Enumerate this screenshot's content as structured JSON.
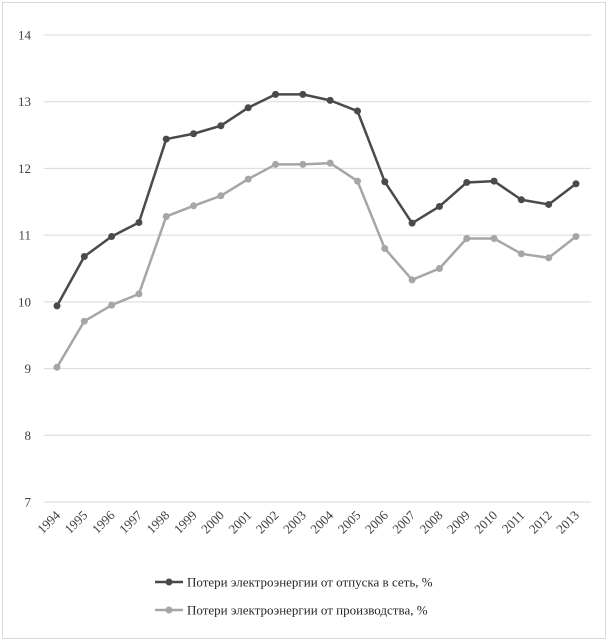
{
  "chart_data": {
    "type": "line",
    "title": "",
    "xlabel": "",
    "ylabel": "",
    "ylim": [
      7,
      14
    ],
    "yticks": [
      7,
      8,
      9,
      10,
      11,
      12,
      13,
      14
    ],
    "grid": true,
    "legend_position": "bottom",
    "categories": [
      "1994",
      "1995",
      "1996",
      "1997",
      "1998",
      "1999",
      "2000",
      "2001",
      "2002",
      "2003",
      "2004",
      "2005",
      "2006",
      "2007",
      "2008",
      "2009",
      "2010",
      "2011",
      "2012",
      "2013"
    ],
    "series": [
      {
        "name": "Потери электроэнергии от отпуска в сеть, %",
        "color": "#4a4a4a",
        "values": [
          9.94,
          10.68,
          10.98,
          11.19,
          12.44,
          12.52,
          12.64,
          12.91,
          13.11,
          13.11,
          13.02,
          12.86,
          11.8,
          11.18,
          11.43,
          11.79,
          11.81,
          11.53,
          11.46,
          11.77
        ]
      },
      {
        "name": "Потери электроэнергии от производства, %",
        "color": "#a6a6a6",
        "values": [
          9.02,
          9.71,
          9.95,
          10.12,
          11.28,
          11.44,
          11.59,
          11.84,
          12.06,
          12.06,
          12.08,
          11.81,
          10.8,
          10.33,
          10.5,
          10.95,
          10.95,
          10.72,
          10.66,
          10.98
        ]
      }
    ]
  }
}
